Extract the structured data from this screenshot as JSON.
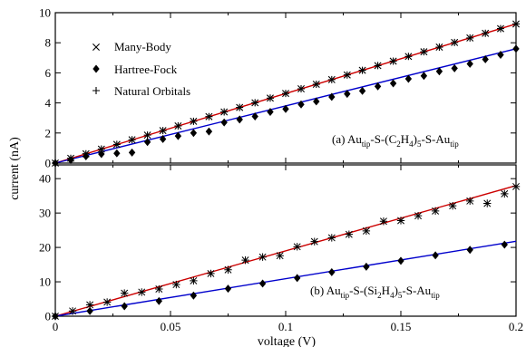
{
  "chart_data": [
    {
      "type": "scatter",
      "panel": "a",
      "ylim": [
        0,
        10
      ],
      "xlim": [
        0,
        0.2
      ],
      "y_ticks": [
        "0",
        "2",
        "4",
        "6",
        "8",
        "10"
      ],
      "x_ticks": [],
      "legend": [
        {
          "name": "Many-Body",
          "marker": "x"
        },
        {
          "name": "Hartree-Fock",
          "marker": "diamond"
        },
        {
          "name": "Natural Orbitals",
          "marker": "plus"
        }
      ],
      "legend_position": "top-left",
      "annotation": {
        "prefix": "(a) Au",
        "sub1": "tip",
        "mid1": "-S-(C",
        "sub2": "2",
        "mid2": "H",
        "sub3": "4",
        "mid3": ")",
        "sub4": "5",
        "mid4": "-S-Au",
        "sub5": "tip"
      },
      "series": [
        {
          "name": "Many-Body",
          "marker": "x",
          "color": "#000000",
          "x": [
            0,
            0.0067,
            0.0133,
            0.02,
            0.0267,
            0.0333,
            0.04,
            0.0467,
            0.0533,
            0.06,
            0.0667,
            0.0733,
            0.08,
            0.0867,
            0.0933,
            0.1,
            0.1067,
            0.1133,
            0.12,
            0.1267,
            0.1333,
            0.14,
            0.1467,
            0.1533,
            0.16,
            0.1667,
            0.1733,
            0.18,
            0.1867,
            0.1933,
            0.2
          ],
          "y": [
            0,
            0.32,
            0.62,
            0.93,
            1.24,
            1.55,
            1.86,
            2.16,
            2.47,
            2.78,
            3.09,
            3.4,
            3.7,
            4.01,
            4.32,
            4.63,
            4.94,
            5.24,
            5.55,
            5.86,
            6.17,
            6.48,
            6.78,
            7.09,
            7.4,
            7.71,
            8.02,
            8.32,
            8.63,
            8.94,
            9.25
          ]
        },
        {
          "name": "Natural Orbitals",
          "marker": "plus",
          "color": "#000000",
          "x": [
            0,
            0.0067,
            0.0133,
            0.02,
            0.0267,
            0.0333,
            0.04,
            0.0467,
            0.0533,
            0.06,
            0.0667,
            0.0733,
            0.08,
            0.0867,
            0.0933,
            0.1,
            0.1067,
            0.1133,
            0.12,
            0.1267,
            0.1333,
            0.14,
            0.1467,
            0.1533,
            0.16,
            0.1667,
            0.1733,
            0.18,
            0.1867,
            0.1933,
            0.2
          ],
          "y": [
            0,
            0.32,
            0.62,
            0.93,
            1.24,
            1.55,
            1.86,
            2.16,
            2.47,
            2.78,
            3.09,
            3.4,
            3.7,
            4.01,
            4.32,
            4.63,
            4.94,
            5.24,
            5.55,
            5.86,
            6.17,
            6.48,
            6.78,
            7.09,
            7.4,
            7.71,
            8.02,
            8.32,
            8.63,
            8.94,
            9.25
          ]
        },
        {
          "name": "Hartree-Fock",
          "marker": "diamond",
          "color": "#000000",
          "x": [
            0,
            0.0067,
            0.0133,
            0.02,
            0.0267,
            0.0333,
            0.04,
            0.0467,
            0.0533,
            0.06,
            0.0667,
            0.0733,
            0.08,
            0.0867,
            0.0933,
            0.1,
            0.1067,
            0.1133,
            0.12,
            0.1267,
            0.1333,
            0.14,
            0.1467,
            0.1533,
            0.16,
            0.1667,
            0.1733,
            0.18,
            0.1867,
            0.1933,
            0.2
          ],
          "y": [
            0,
            0.2,
            0.45,
            0.6,
            0.65,
            0.7,
            1.4,
            1.6,
            1.8,
            2.0,
            2.1,
            2.7,
            2.9,
            3.1,
            3.4,
            3.6,
            3.9,
            4.1,
            4.4,
            4.6,
            4.8,
            5.1,
            5.3,
            5.6,
            5.8,
            6.1,
            6.3,
            6.6,
            6.9,
            7.2,
            7.6
          ]
        },
        {
          "name": "fit-red",
          "type": "line",
          "color": "#cc0000",
          "x": [
            0,
            0.2
          ],
          "y": [
            0,
            9.25
          ]
        },
        {
          "name": "fit-blue",
          "type": "line",
          "color": "#0000cc",
          "x": [
            0,
            0.2
          ],
          "y": [
            0,
            7.6
          ]
        }
      ]
    },
    {
      "type": "scatter",
      "panel": "b",
      "ylim": [
        0,
        44
      ],
      "xlim": [
        0,
        0.2
      ],
      "y_ticks": [
        "0",
        "10",
        "20",
        "30",
        "40"
      ],
      "x_ticks": [
        "0",
        "0.05",
        "0.1",
        "0.15",
        "0.2"
      ],
      "xlabel": "voltage (V)",
      "annotation": {
        "prefix": "(b) Au",
        "sub1": "tip",
        "mid1": "-S-(Si",
        "sub2": "2",
        "mid2": "H",
        "sub3": "4",
        "mid3": ")",
        "sub4": "5",
        "mid4": "-S-Au",
        "sub5": "tip"
      },
      "series": [
        {
          "name": "Many-Body",
          "marker": "asterisk",
          "color": "#000000",
          "x": [
            0,
            0.0075,
            0.015,
            0.0225,
            0.03,
            0.0375,
            0.045,
            0.0525,
            0.06,
            0.0675,
            0.075,
            0.0825,
            0.09,
            0.0975,
            0.105,
            0.1125,
            0.12,
            0.1275,
            0.135,
            0.1425,
            0.15,
            0.1575,
            0.165,
            0.1725,
            0.18,
            0.1875,
            0.195,
            0.2
          ],
          "y": [
            0,
            1.5,
            3.3,
            4.1,
            6.7,
            7.0,
            7.9,
            9.2,
            10.3,
            12.4,
            13.5,
            16.3,
            17.2,
            17.6,
            20.2,
            21.7,
            22.8,
            23.8,
            24.8,
            27.6,
            27.8,
            29.2,
            30.6,
            32.1,
            33.5,
            32.8,
            35.6,
            37.7
          ]
        },
        {
          "name": "Hartree-Fock",
          "marker": "diamond",
          "color": "#000000",
          "x": [
            0,
            0.015,
            0.03,
            0.045,
            0.06,
            0.075,
            0.09,
            0.105,
            0.12,
            0.135,
            0.15,
            0.165,
            0.18,
            0.195
          ],
          "y": [
            0,
            1.5,
            2.9,
            4.4,
            6.0,
            8.0,
            9.5,
            11.1,
            12.8,
            14.4,
            16.1,
            17.7,
            19.3,
            20.8
          ]
        },
        {
          "name": "fit-red",
          "type": "line",
          "color": "#cc0000",
          "x": [
            0,
            0.2
          ],
          "y": [
            0,
            38.0
          ]
        },
        {
          "name": "fit-blue",
          "type": "line",
          "color": "#0000cc",
          "x": [
            0,
            0.2
          ],
          "y": [
            0,
            21.8
          ]
        }
      ]
    }
  ],
  "shared": {
    "ylabel": "current (nA)",
    "xlabel": "voltage (V)"
  }
}
